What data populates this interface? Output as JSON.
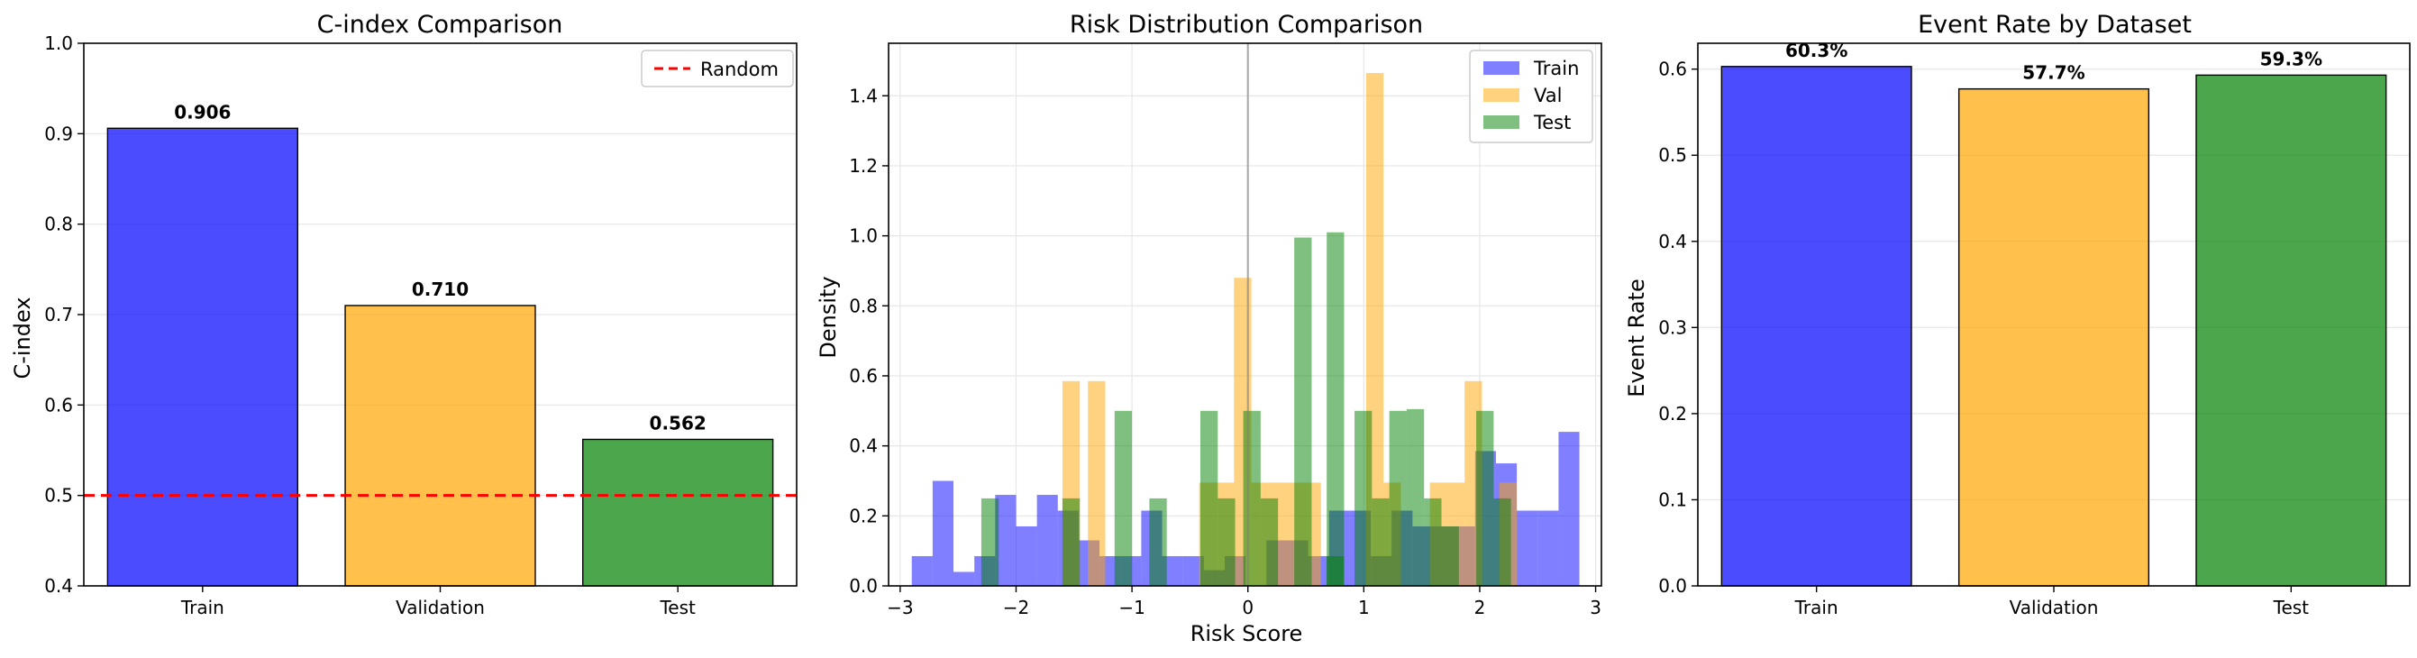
{
  "chart_data": [
    {
      "type": "bar",
      "title": "C-index Comparison",
      "xlabel": "",
      "ylabel": "C-index",
      "ylim": [
        0.4,
        1.0
      ],
      "yticks": [
        "0.4",
        "0.5",
        "0.6",
        "0.7",
        "0.8",
        "0.9",
        "1.0"
      ],
      "categories": [
        "Train",
        "Validation",
        "Test"
      ],
      "values": [
        0.906,
        0.71,
        0.562
      ],
      "value_labels": [
        "0.906",
        "0.710",
        "0.562"
      ],
      "colors": [
        "#0000ff",
        "#ffa500",
        "#008000"
      ],
      "reference_line": {
        "y": 0.5,
        "label": "Random",
        "color": "#ff0000",
        "style": "dashed"
      },
      "legend": {
        "placement": "top-right",
        "entries": [
          "Random"
        ]
      },
      "grid": true
    },
    {
      "type": "histogram",
      "title": "Risk Distribution Comparison",
      "xlabel": "Risk Score",
      "ylabel": "Density",
      "xlim": [
        -3.1,
        3.05
      ],
      "ylim": [
        0,
        1.55
      ],
      "xticks": [
        "−3",
        "−2",
        "−1",
        "0",
        "1",
        "2",
        "3"
      ],
      "yticks": [
        "0.0",
        "0.2",
        "0.4",
        "0.6",
        "0.8",
        "1.0",
        "1.2",
        "1.4"
      ],
      "vline": {
        "x": 0,
        "color": "#808080"
      },
      "legend": {
        "placement": "top-right",
        "entries": [
          "Train",
          "Val",
          "Test"
        ]
      },
      "grid": true,
      "series": [
        {
          "name": "Train",
          "color": "#0000ff",
          "bins": [
            [
              -2.9,
              -2.72,
              0.085
            ],
            [
              -2.72,
              -2.54,
              0.3
            ],
            [
              -2.54,
              -2.36,
              0.04
            ],
            [
              -2.36,
              -2.18,
              0.085
            ],
            [
              -2.18,
              -2.0,
              0.26
            ],
            [
              -2.0,
              -1.82,
              0.17
            ],
            [
              -1.82,
              -1.64,
              0.26
            ],
            [
              -1.64,
              -1.46,
              0.215
            ],
            [
              -1.46,
              -1.28,
              0.13
            ],
            [
              -1.28,
              -1.1,
              0.085
            ],
            [
              -1.1,
              -0.92,
              0.085
            ],
            [
              -0.92,
              -0.74,
              0.215
            ],
            [
              -0.74,
              -0.56,
              0.085
            ],
            [
              -0.56,
              -0.38,
              0.085
            ],
            [
              -0.38,
              -0.2,
              0.045
            ],
            [
              -0.2,
              -0.02,
              0.085
            ],
            [
              -0.02,
              0.16,
              0.0
            ],
            [
              0.16,
              0.34,
              0.13
            ],
            [
              0.34,
              0.52,
              0.13
            ],
            [
              0.52,
              0.7,
              0.085
            ],
            [
              0.7,
              0.88,
              0.215
            ],
            [
              0.88,
              1.06,
              0.215
            ],
            [
              1.06,
              1.24,
              0.085
            ],
            [
              1.24,
              1.42,
              0.215
            ],
            [
              1.42,
              1.6,
              0.17
            ],
            [
              1.6,
              1.78,
              0.17
            ],
            [
              1.78,
              1.96,
              0.17
            ],
            [
              1.96,
              2.14,
              0.385
            ],
            [
              2.14,
              2.32,
              0.35
            ],
            [
              2.32,
              2.5,
              0.215
            ],
            [
              2.5,
              2.68,
              0.215
            ],
            [
              2.68,
              2.86,
              0.44
            ]
          ]
        },
        {
          "name": "Val",
          "color": "#ffa500",
          "bins": [
            [
              -2.3,
              -2.15,
              0.0
            ],
            [
              -1.6,
              -1.45,
              0.585
            ],
            [
              -1.38,
              -1.23,
              0.585
            ],
            [
              -1.23,
              -1.08,
              0.0
            ],
            [
              -0.42,
              -0.27,
              0.295
            ],
            [
              -0.27,
              -0.12,
              0.295
            ],
            [
              -0.12,
              0.03,
              0.88
            ],
            [
              0.03,
              0.18,
              0.295
            ],
            [
              0.18,
              0.33,
              0.295
            ],
            [
              0.33,
              0.48,
              0.295
            ],
            [
              0.48,
              0.63,
              0.295
            ],
            [
              1.02,
              1.17,
              1.465
            ],
            [
              1.17,
              1.32,
              0.295
            ],
            [
              1.57,
              1.72,
              0.295
            ],
            [
              1.72,
              1.87,
              0.295
            ],
            [
              1.87,
              2.02,
              0.585
            ],
            [
              2.02,
              2.17,
              0.0
            ],
            [
              2.17,
              2.32,
              0.295
            ]
          ]
        },
        {
          "name": "Test",
          "color": "#008000",
          "bins": [
            [
              -2.3,
              -2.15,
              0.25
            ],
            [
              -1.6,
              -1.45,
              0.25
            ],
            [
              -1.15,
              -1.0,
              0.5
            ],
            [
              -0.85,
              -0.7,
              0.25
            ],
            [
              -0.41,
              -0.26,
              0.5
            ],
            [
              -0.26,
              -0.11,
              0.25
            ],
            [
              -0.04,
              0.11,
              0.5
            ],
            [
              0.11,
              0.26,
              0.25
            ],
            [
              0.4,
              0.55,
              0.995
            ],
            [
              0.68,
              0.83,
              1.01
            ],
            [
              0.68,
              0.83,
              0.085
            ],
            [
              0.92,
              1.07,
              0.5
            ],
            [
              1.07,
              1.22,
              0.25
            ],
            [
              1.22,
              1.37,
              0.5
            ],
            [
              1.37,
              1.52,
              0.505
            ],
            [
              1.52,
              1.67,
              0.25
            ],
            [
              1.67,
              1.82,
              0.17
            ],
            [
              1.97,
              2.12,
              0.5
            ],
            [
              2.12,
              2.27,
              0.25
            ]
          ]
        }
      ]
    },
    {
      "type": "bar",
      "title": "Event Rate by Dataset",
      "xlabel": "",
      "ylabel": "Event Rate",
      "ylim": [
        0,
        0.63
      ],
      "yticks": [
        "0.0",
        "0.1",
        "0.2",
        "0.3",
        "0.4",
        "0.5",
        "0.6"
      ],
      "categories": [
        "Train",
        "Validation",
        "Test"
      ],
      "values": [
        0.603,
        0.577,
        0.593
      ],
      "value_labels": [
        "60.3%",
        "57.7%",
        "59.3%"
      ],
      "colors": [
        "#0000ff",
        "#ffa500",
        "#008000"
      ],
      "grid": true
    }
  ]
}
